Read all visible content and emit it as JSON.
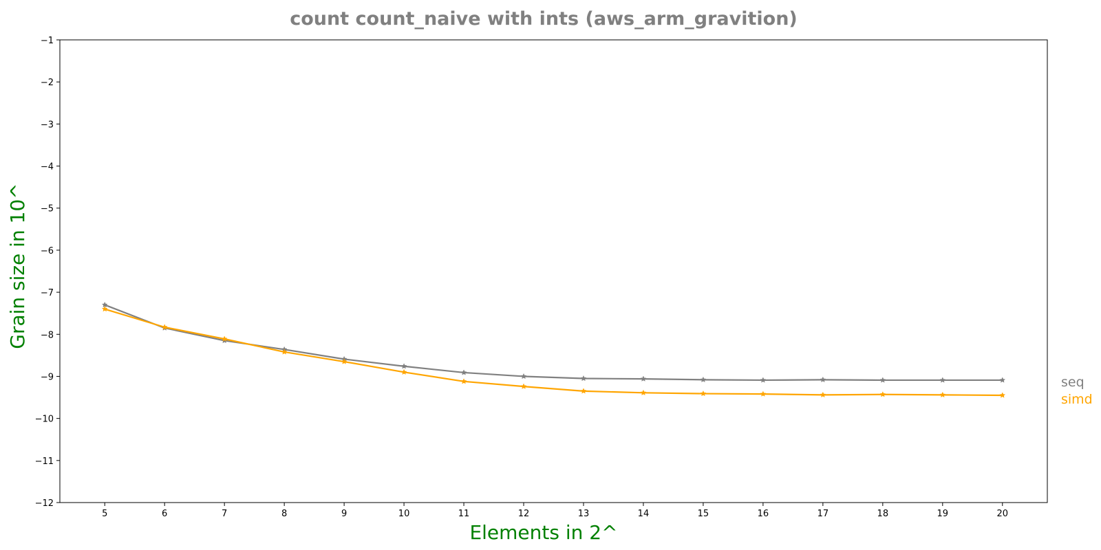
{
  "chart_data": {
    "type": "line",
    "title": "count count_naive with ints  (aws_arm_gravition)",
    "title_color": "#808080",
    "xlabel": "Elements in 2^",
    "ylabel": "Grain size in 10^",
    "label_color": "#008000",
    "x": [
      5,
      6,
      7,
      8,
      9,
      10,
      11,
      12,
      13,
      14,
      15,
      16,
      17,
      18,
      19,
      20
    ],
    "xlim": [
      4.25,
      20.75
    ],
    "ylim": [
      -12,
      -1
    ],
    "yticks": [
      -1,
      -2,
      -3,
      -4,
      -5,
      -6,
      -7,
      -8,
      -9,
      -10,
      -11,
      -12
    ],
    "ytick_labels": [
      "−1",
      "−2",
      "−3",
      "−4",
      "−5",
      "−6",
      "−7",
      "−8",
      "−9",
      "−10",
      "−11",
      "−12"
    ],
    "grid": false,
    "legend_position": "right, beside final values",
    "series": [
      {
        "name": "seq",
        "color": "#808080",
        "marker": "star",
        "values": [
          -7.3,
          -7.85,
          -8.15,
          -8.36,
          -8.59,
          -8.76,
          -8.91,
          -9.0,
          -9.05,
          -9.06,
          -9.08,
          -9.09,
          -9.08,
          -9.09,
          -9.09,
          -9.09
        ]
      },
      {
        "name": "simd",
        "color": "#FFA500",
        "marker": "star",
        "values": [
          -7.4,
          -7.83,
          -8.11,
          -8.42,
          -8.65,
          -8.9,
          -9.12,
          -9.24,
          -9.35,
          -9.39,
          -9.41,
          -9.42,
          -9.44,
          -9.43,
          -9.44,
          -9.45
        ]
      }
    ]
  }
}
